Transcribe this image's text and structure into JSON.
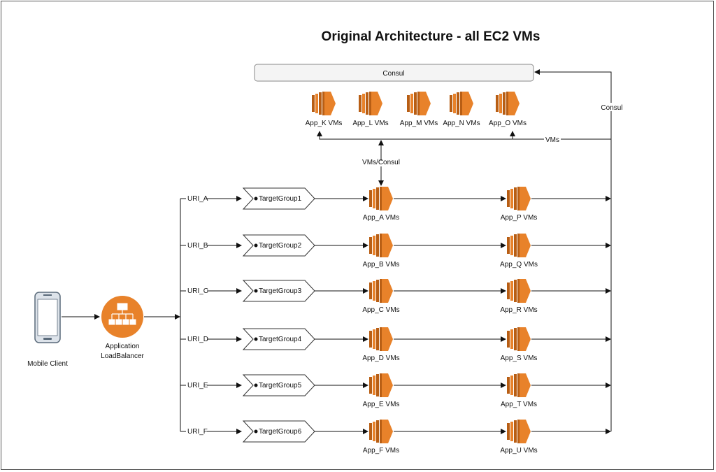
{
  "title": "Original Architecture - all EC2 VMs",
  "consul_box": "Consul",
  "edge_labels": {
    "consul": "Consul",
    "vms": "VMs",
    "vms_consul": "VMs/Consul"
  },
  "client": {
    "label": "Mobile Client",
    "icon": "mobile-phone-icon"
  },
  "load_balancer": {
    "label_line1": "Application",
    "label_line2": "LoadBalancer",
    "icon": "load-balancer-icon"
  },
  "top_apps": [
    "App_K VMs",
    "App_L VMs",
    "App_M VMs",
    "App_N VMs",
    "App_O VMs"
  ],
  "rows": [
    {
      "uri": "URI_A",
      "target_group": "TargetGroup1",
      "app1": "App_A VMs",
      "app2": "App_P VMs"
    },
    {
      "uri": "URI_B",
      "target_group": "TargetGroup2",
      "app1": "App_B VMs",
      "app2": "App_Q VMs"
    },
    {
      "uri": "URI_C",
      "target_group": "TargetGroup3",
      "app1": "App_C VMs",
      "app2": "App_R VMs"
    },
    {
      "uri": "URI_D",
      "target_group": "TargetGroup4",
      "app1": "App_D VMs",
      "app2": "App_S VMs"
    },
    {
      "uri": "URI_E",
      "target_group": "TargetGroup5",
      "app1": "App_E VMs",
      "app2": "App_T VMs"
    },
    {
      "uri": "URI_F",
      "target_group": "TargetGroup6",
      "app1": "App_F VMs",
      "app2": "App_U VMs"
    }
  ],
  "colors": {
    "ec2_orange": "#E8822A",
    "ec2_dark": "#B85E14",
    "line": "#111111",
    "consul_fill": "#F4F4F4"
  }
}
